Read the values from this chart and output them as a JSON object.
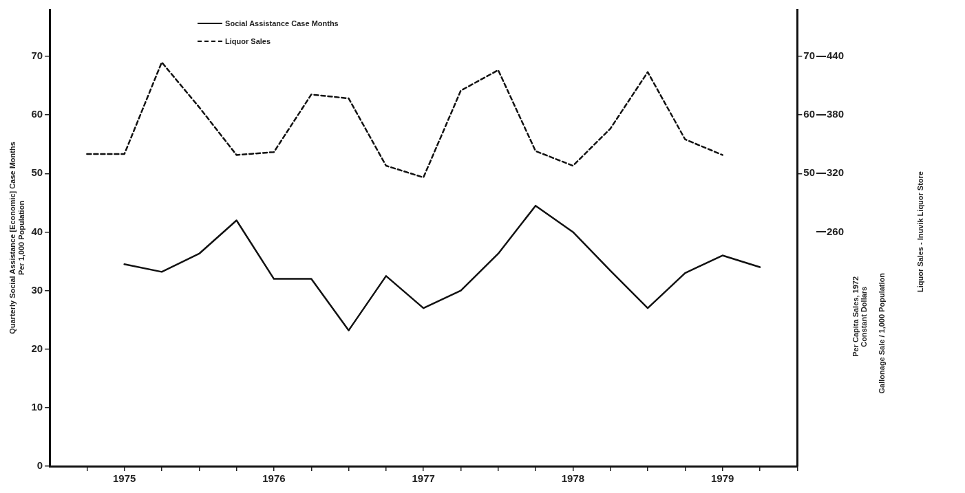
{
  "chart_data": {
    "type": "line",
    "ylabel": "Quarterly Social Assistance [Economic] Case Months\nPer 1,000 Population",
    "annotations": [
      "Per Capita Sales, 1972\nConstant Dollars",
      "Gallonage Sale / 1,000 Population",
      "Liquor Sales - Inuvik Liquor Store"
    ],
    "xlim": [
      1975,
      1980
    ],
    "xticks": [
      {
        "value": 1975.25,
        "label": null
      },
      {
        "value": 1975.5,
        "label": "1975"
      },
      {
        "value": 1975.75,
        "label": null
      },
      {
        "value": 1976,
        "label": null
      },
      {
        "value": 1976.25,
        "label": null
      },
      {
        "value": 1976.5,
        "label": "1976"
      },
      {
        "value": 1976.75,
        "label": null
      },
      {
        "value": 1977,
        "label": null
      },
      {
        "value": 1977.25,
        "label": null
      },
      {
        "value": 1977.5,
        "label": "1977"
      },
      {
        "value": 1977.75,
        "label": null
      },
      {
        "value": 1978,
        "label": null
      },
      {
        "value": 1978.25,
        "label": null
      },
      {
        "value": 1978.5,
        "label": "1978"
      },
      {
        "value": 1978.75,
        "label": null
      },
      {
        "value": 1979,
        "label": null
      },
      {
        "value": 1979.25,
        "label": null
      },
      {
        "value": 1979.5,
        "label": "1979"
      },
      {
        "value": 1979.75,
        "label": null
      },
      {
        "value": 1980,
        "label": null
      }
    ],
    "ylim": [
      0,
      78
    ],
    "yticks": [
      0,
      10,
      20,
      30,
      40,
      50,
      60,
      70
    ],
    "y2lim": [
      0,
      78
    ],
    "y2ticks": [
      50,
      60,
      70
    ],
    "y3lim": [
      20,
      488
    ],
    "y3ticks": [
      260,
      320,
      380,
      440
    ],
    "grid": false,
    "legend": "top left",
    "series": [
      {
        "name": "Social Assistance Case Months",
        "color": "#111111",
        "line_style": "solid",
        "x": [
          1975.5,
          1975.75,
          1976,
          1976.25,
          1976.5,
          1976.75,
          1977,
          1977.25,
          1977.5,
          1977.75,
          1978,
          1978.25,
          1978.5,
          1978.75,
          1979,
          1979.25,
          1979.5,
          1979.75
        ],
        "values": [
          34.5,
          33.2,
          36.3,
          42,
          32,
          32,
          23.2,
          32.5,
          27,
          30,
          36.3,
          44.5,
          40,
          33.4,
          27,
          33,
          36,
          34
        ]
      },
      {
        "name": "Liquor Sales",
        "color": "#111111",
        "line_style": "dashed",
        "axis": "y3",
        "x": [
          1975.25,
          1975.5,
          1975.75,
          1976,
          1976.25,
          1976.5,
          1976.75,
          1977,
          1977.25,
          1977.5,
          1977.75,
          1978,
          1978.25,
          1978.5,
          1978.75,
          1979,
          1979.25,
          1979.5
        ],
        "values": [
          340,
          340,
          434,
          388,
          339,
          342,
          401,
          397,
          328,
          316,
          405,
          426,
          343,
          328,
          366,
          424,
          355,
          339
        ]
      }
    ]
  }
}
